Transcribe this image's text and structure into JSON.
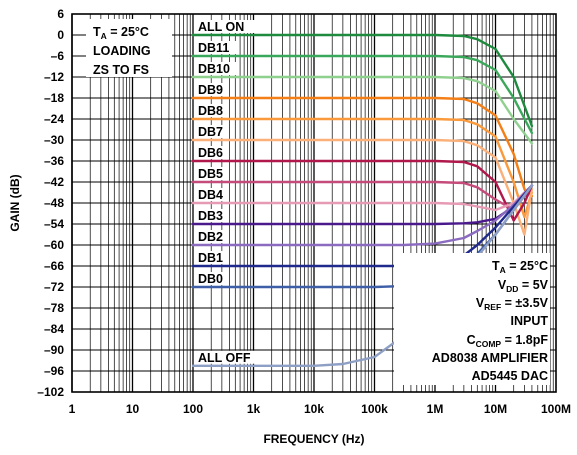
{
  "chart_data": {
    "type": "line",
    "xlabel": "FREQUENCY (Hz)",
    "ylabel": "GAIN (dB)",
    "x_scale": "log",
    "xlim": [
      1,
      100000000
    ],
    "ylim": [
      -102,
      6
    ],
    "grid": true,
    "x_ticks": [
      "1",
      "10",
      "100",
      "1k",
      "10k",
      "100k",
      "1M",
      "10M",
      "100M"
    ],
    "y_ticks": [
      "6",
      "0",
      "–6",
      "–12",
      "–18",
      "–24",
      "–30",
      "–36",
      "–42",
      "–48",
      "–54",
      "–60",
      "–66",
      "–72",
      "–78",
      "–84",
      "–90",
      "–96",
      "–102"
    ],
    "annotations": {
      "top_left": {
        "l1_main": "T",
        "l1_sub": "A",
        "l1_rest": " = 25°C",
        "l2": "LOADING",
        "l3": "ZS TO FS"
      },
      "bottom_right": {
        "ta_main": "T",
        "ta_sub": "A",
        "ta_rest": " = 25°C",
        "vdd_main": "V",
        "vdd_sub": "DD",
        "vdd_rest": " = 5V",
        "vref_main": "V",
        "vref_sub": "REF",
        "vref_rest": " = ±3.5V",
        "input": "INPUT",
        "ccomp_main": "C",
        "ccomp_sub": "COMP",
        "ccomp_rest": " = 1.8pF",
        "amp": "AD8038 AMPLIFIER",
        "dac": "AD5445 DAC"
      }
    },
    "series": [
      {
        "name": "ALL ON",
        "color": "#1e8a3e",
        "flat": 0,
        "x": [
          100,
          1000000,
          3000000,
          5000000,
          10000000,
          20000000,
          40000000
        ],
        "y": [
          0,
          0,
          -0.3,
          -1.2,
          -4,
          -12,
          -26
        ]
      },
      {
        "name": "DB11",
        "color": "#3aa85a",
        "flat": -6,
        "x": [
          100,
          1000000,
          3000000,
          5000000,
          10000000,
          20000000,
          40000000
        ],
        "y": [
          -6,
          -6,
          -6.3,
          -7.2,
          -10,
          -18,
          -28
        ]
      },
      {
        "name": "DB10",
        "color": "#8fd08f",
        "flat": -12,
        "x": [
          100,
          1000000,
          3000000,
          5000000,
          10000000,
          20000000,
          40000000
        ],
        "y": [
          -12,
          -12,
          -12.3,
          -13.2,
          -16,
          -24,
          -31
        ]
      },
      {
        "name": "DB9",
        "color": "#f57f17",
        "flat": -18,
        "x": [
          100,
          1000000,
          3000000,
          5000000,
          10000000,
          20000000,
          30000000,
          40000000
        ],
        "y": [
          -18,
          -18,
          -18.3,
          -19.5,
          -23,
          -34,
          -44,
          -46
        ]
      },
      {
        "name": "DB8",
        "color": "#fb9a3c",
        "flat": -24,
        "x": [
          100,
          1000000,
          3000000,
          5000000,
          10000000,
          20000000,
          30000000,
          40000000
        ],
        "y": [
          -24,
          -24,
          -24.3,
          -25.5,
          -29,
          -42,
          -52,
          -45
        ]
      },
      {
        "name": "DB7",
        "color": "#fbb07a",
        "flat": -30,
        "x": [
          100,
          1000000,
          3000000,
          5000000,
          10000000,
          20000000,
          30000000,
          40000000
        ],
        "y": [
          -30,
          -30,
          -30.3,
          -31.5,
          -35,
          -48,
          -57,
          -44
        ]
      },
      {
        "name": "DB6",
        "color": "#b0174a",
        "flat": -36,
        "x": [
          100,
          1000000,
          3000000,
          5000000,
          10000000,
          20000000,
          30000000,
          40000000
        ],
        "y": [
          -36,
          -36,
          -36.3,
          -37.5,
          -42,
          -53,
          -48,
          -43
        ]
      },
      {
        "name": "DB5",
        "color": "#c54b7a",
        "flat": -42,
        "x": [
          100,
          1000000,
          3000000,
          5000000,
          10000000,
          20000000,
          30000000,
          40000000
        ],
        "y": [
          -42,
          -42,
          -42.3,
          -43.5,
          -47,
          -50,
          -46,
          -43
        ]
      },
      {
        "name": "DB4",
        "color": "#e79ab4",
        "flat": -48,
        "x": [
          100,
          1000000,
          3000000,
          5000000,
          10000000,
          20000000,
          30000000,
          40000000
        ],
        "y": [
          -48,
          -48,
          -48.3,
          -49,
          -50,
          -48,
          -45,
          -43
        ]
      },
      {
        "name": "DB3",
        "color": "#4a1a8c",
        "flat": -54,
        "x": [
          100,
          1000000,
          3000000,
          5000000,
          10000000,
          20000000,
          30000000,
          40000000
        ],
        "y": [
          -54,
          -54,
          -53.8,
          -53.5,
          -52.5,
          -49,
          -46,
          -43
        ]
      },
      {
        "name": "DB2",
        "color": "#8b6bbf",
        "flat": -60,
        "x": [
          100,
          300000,
          1000000,
          3000000,
          5000000,
          10000000,
          20000000,
          40000000
        ],
        "y": [
          -60,
          -60,
          -59.6,
          -58,
          -56,
          -53,
          -48.5,
          -43
        ]
      },
      {
        "name": "DB1",
        "color": "#1f2a8c",
        "flat": -66,
        "x": [
          100,
          300000,
          1000000,
          2000000,
          3000000,
          5000000,
          10000000,
          20000000,
          40000000
        ],
        "y": [
          -66,
          -66,
          -65.5,
          -64.5,
          -63,
          -60,
          -55,
          -49,
          -43
        ]
      },
      {
        "name": "DB0",
        "color": "#3e5fa8",
        "flat": -72,
        "x": [
          100,
          100000,
          300000,
          1000000,
          2000000,
          3000000,
          5000000,
          10000000,
          20000000,
          40000000
        ],
        "y": [
          -72,
          -72,
          -71.7,
          -70.3,
          -68.3,
          -66.5,
          -62.5,
          -57,
          -50,
          -43
        ]
      },
      {
        "name": "ALL OFF",
        "color": "#8e9fc5",
        "flat": -94.5,
        "x": [
          100,
          10000,
          30000,
          100000,
          300000,
          1000000,
          3000000,
          10000000,
          20000000,
          40000000
        ],
        "y": [
          -94.5,
          -94.5,
          -94,
          -92,
          -86,
          -78,
          -68,
          -57,
          -50,
          -43
        ]
      }
    ]
  }
}
